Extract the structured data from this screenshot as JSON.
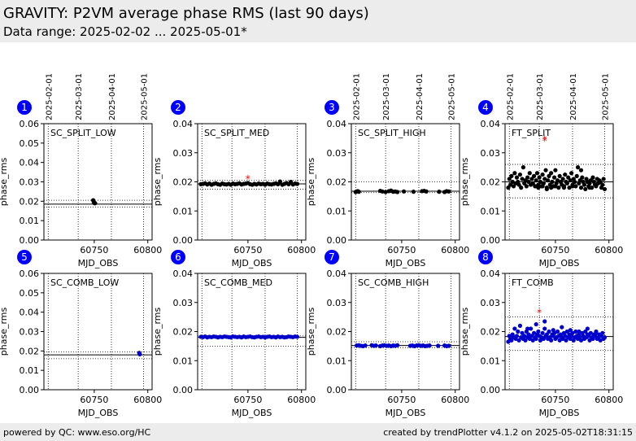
{
  "header": {
    "title": "GRAVITY: P2VM average phase RMS (last 90 days)",
    "subtitle": "Data range: 2025-02-02 ... 2025-05-01*"
  },
  "footer": {
    "left": "powered by QC: www.eso.org/HC",
    "right": "created by trendPlotter v4.1.2 on 2025-05-02T18:31:15"
  },
  "colors": {
    "header_bg": "#ececec",
    "badge": "#0000ff",
    "series_black": "#000000",
    "series_blue": "#0000cc",
    "outlier": "#ff0000"
  },
  "chart_data": [
    {
      "id": 1,
      "type": "scatter",
      "label": "SC_SPLIT_LOW",
      "color": "#000000",
      "ylim": [
        0,
        0.06
      ],
      "yticks": [
        "0.00",
        "0.01",
        "0.02",
        "0.03",
        "0.04",
        "0.05",
        "0.06"
      ],
      "xlim": [
        60703,
        60804
      ],
      "xticks": [
        "60750",
        "60800"
      ],
      "xlabel": "MJD_OBS",
      "ylabel": "phase_rms",
      "date_ticks": [
        "2025-02-01",
        "2025-03-01",
        "2025-04-01",
        "2025-05-01"
      ],
      "hlines": {
        "solid": 0.0185,
        "dotted": [
          0.017,
          0.0205
        ]
      },
      "x": [
        60749.0,
        60749.6,
        60750.2,
        60750.8
      ],
      "y": [
        0.0205,
        0.0195,
        0.019,
        0.019
      ],
      "outliers": []
    },
    {
      "id": 2,
      "type": "scatter",
      "label": "SC_SPLIT_MED",
      "color": "#000000",
      "ylim": [
        0,
        0.04
      ],
      "yticks": [
        "0.00",
        "0.01",
        "0.02",
        "0.03",
        "0.04"
      ],
      "xlim": [
        60703,
        60804
      ],
      "xticks": [
        "60750",
        "60800"
      ],
      "xlabel": "MJD_OBS",
      "ylabel": "phase_rms",
      "hlines": {
        "solid": 0.0193,
        "dotted": [
          0.0175,
          0.0205
        ]
      },
      "x": [
        60706,
        60708,
        60710,
        60712,
        60714,
        60716,
        60718,
        60720,
        60722,
        60724,
        60726,
        60728,
        60730,
        60732,
        60734,
        60736,
        60738,
        60740,
        60742,
        60744,
        60746,
        60748,
        60750,
        60752,
        60754,
        60756,
        60758,
        60760,
        60762,
        60764,
        60766,
        60768,
        60770,
        60772,
        60774,
        60776,
        60778,
        60780,
        60782,
        60784,
        60786,
        60788,
        60790,
        60792,
        60794,
        60796
      ],
      "y": [
        0.0192,
        0.0193,
        0.0195,
        0.0191,
        0.0194,
        0.019,
        0.0193,
        0.0195,
        0.0192,
        0.019,
        0.0194,
        0.0192,
        0.0191,
        0.0193,
        0.019,
        0.0194,
        0.0192,
        0.0193,
        0.0195,
        0.0191,
        0.0193,
        0.0194,
        0.0196,
        0.0192,
        0.019,
        0.0193,
        0.0191,
        0.0194,
        0.0192,
        0.0193,
        0.019,
        0.0194,
        0.0192,
        0.0191,
        0.0193,
        0.0195,
        0.0192,
        0.0201,
        0.019,
        0.0193,
        0.0196,
        0.0192,
        0.02,
        0.0191,
        0.0194,
        0.0193
      ],
      "outliers": [
        [
          60750,
          0.021
        ]
      ]
    },
    {
      "id": 3,
      "type": "scatter",
      "label": "SC_SPLIT_HIGH",
      "color": "#000000",
      "ylim": [
        0,
        0.04
      ],
      "yticks": [
        "0.00",
        "0.01",
        "0.02",
        "0.03",
        "0.04"
      ],
      "xlim": [
        60703,
        60804
      ],
      "xticks": [
        "60750",
        "60800"
      ],
      "xlabel": "MJD_OBS",
      "ylabel": "phase_rms",
      "date_ticks": [
        "2025-02-01",
        "2025-03-01",
        "2025-04-01",
        "2025-05-01"
      ],
      "hlines": {
        "solid": 0.0168,
        "dotted": [
          0.0163,
          0.02
        ]
      },
      "x": [
        60707,
        60708,
        60709,
        60710,
        60730,
        60732,
        60735,
        60738,
        60740,
        60742,
        60744,
        60746,
        60752,
        60761,
        60769,
        60771,
        60773,
        60785,
        60790,
        60792,
        60794
      ],
      "y": [
        0.0165,
        0.0167,
        0.0168,
        0.0166,
        0.0169,
        0.0167,
        0.0165,
        0.0168,
        0.017,
        0.0166,
        0.0167,
        0.0165,
        0.0167,
        0.0166,
        0.0168,
        0.0169,
        0.0167,
        0.0166,
        0.0165,
        0.0168,
        0.0167
      ],
      "outliers": []
    },
    {
      "id": 4,
      "type": "scatter",
      "label": "FT_SPLIT",
      "color": "#000000",
      "ylim": [
        0,
        0.04
      ],
      "yticks": [
        "0.00",
        "0.01",
        "0.02",
        "0.03",
        "0.04"
      ],
      "xlim": [
        60703,
        60804
      ],
      "xticks": [
        "60750",
        "60800"
      ],
      "xlabel": "MJD_OBS",
      "ylabel": "phase_rms",
      "date_ticks": [
        "2025-02-01",
        "2025-03-01",
        "2025-04-01",
        "2025-05-01"
      ],
      "hlines": {
        "solid": 0.02,
        "dotted": [
          0.0145,
          0.026
        ]
      },
      "x": [
        60706,
        60707,
        60708,
        60709,
        60710,
        60711,
        60712,
        60713,
        60714,
        60715,
        60716,
        60717,
        60718,
        60719,
        60720,
        60721,
        60722,
        60723,
        60724,
        60725,
        60726,
        60727,
        60728,
        60729,
        60730,
        60731,
        60732,
        60733,
        60734,
        60735,
        60736,
        60737,
        60738,
        60739,
        60740,
        60741,
        60742,
        60743,
        60744,
        60745,
        60746,
        60747,
        60748,
        60749,
        60750,
        60751,
        60752,
        60753,
        60754,
        60755,
        60756,
        60757,
        60758,
        60759,
        60760,
        60761,
        60762,
        60763,
        60764,
        60765,
        60766,
        60767,
        60768,
        60769,
        60770,
        60771,
        60772,
        60773,
        60774,
        60775,
        60776,
        60777,
        60778,
        60779,
        60780,
        60781,
        60782,
        60783,
        60784,
        60785,
        60786,
        60787,
        60788,
        60789,
        60790,
        60791,
        60792,
        60793,
        60794,
        60795,
        60796,
        60734,
        60738,
        60742,
        60746,
        60750,
        60758,
        60766,
        60774,
        60782
      ],
      "y": [
        0.018,
        0.021,
        0.019,
        0.022,
        0.02,
        0.0185,
        0.023,
        0.0195,
        0.0215,
        0.02,
        0.019,
        0.0225,
        0.018,
        0.021,
        0.025,
        0.0195,
        0.0205,
        0.0185,
        0.0215,
        0.02,
        0.023,
        0.019,
        0.021,
        0.0195,
        0.022,
        0.0185,
        0.0205,
        0.023,
        0.019,
        0.0215,
        0.02,
        0.0185,
        0.0225,
        0.0195,
        0.021,
        0.024,
        0.018,
        0.0205,
        0.022,
        0.019,
        0.023,
        0.02,
        0.0185,
        0.0215,
        0.024,
        0.0195,
        0.0205,
        0.018,
        0.022,
        0.02,
        0.019,
        0.021,
        0.0185,
        0.0225,
        0.02,
        0.0195,
        0.0215,
        0.018,
        0.0205,
        0.023,
        0.019,
        0.021,
        0.02,
        0.0185,
        0.022,
        0.025,
        0.0195,
        0.0205,
        0.018,
        0.0215,
        0.02,
        0.019,
        0.0175,
        0.021,
        0.02,
        0.0185,
        0.0195,
        0.0205,
        0.018,
        0.0215,
        0.02,
        0.019,
        0.0185,
        0.021,
        0.0195,
        0.0205,
        0.02,
        0.018,
        0.019,
        0.021,
        0.0175,
        0.018,
        0.0185,
        0.0175,
        0.018,
        0.0185,
        0.018,
        0.0185,
        0.024,
        0.018
      ],
      "outliers": [
        [
          60740,
          0.0345
        ],
        [
          60740,
          0.034
        ]
      ]
    },
    {
      "id": 5,
      "type": "scatter",
      "label": "SC_COMB_LOW",
      "color": "#0000cc",
      "ylim": [
        0,
        0.06
      ],
      "yticks": [
        "0.00",
        "0.01",
        "0.02",
        "0.03",
        "0.04",
        "0.05",
        "0.06"
      ],
      "xlim": [
        60703,
        60804
      ],
      "xticks": [
        "60750",
        "60800"
      ],
      "xlabel": "MJD_OBS",
      "ylabel": "phase_rms",
      "hlines": {
        "solid": 0.018,
        "dotted": [
          0.016,
          0.0195
        ]
      },
      "x": [
        60792,
        60792.5
      ],
      "y": [
        0.019,
        0.0183
      ],
      "outliers": []
    },
    {
      "id": 6,
      "type": "scatter",
      "label": "SC_COMB_MED",
      "color": "#0000cc",
      "ylim": [
        0,
        0.04
      ],
      "yticks": [
        "0.00",
        "0.01",
        "0.02",
        "0.03",
        "0.04"
      ],
      "xlim": [
        60703,
        60804
      ],
      "xticks": [
        "60750",
        "60800"
      ],
      "xlabel": "MJD_OBS",
      "ylabel": "phase_rms",
      "hlines": {
        "solid": 0.018,
        "dotted": [
          0.015,
          0.0185
        ]
      },
      "x": [
        60706,
        60708,
        60710,
        60712,
        60714,
        60716,
        60718,
        60720,
        60722,
        60724,
        60726,
        60728,
        60730,
        60732,
        60734,
        60736,
        60738,
        60740,
        60742,
        60744,
        60746,
        60748,
        60750,
        60752,
        60754,
        60756,
        60758,
        60760,
        60762,
        60764,
        60766,
        60768,
        60770,
        60772,
        60774,
        60776,
        60778,
        60780,
        60782,
        60784,
        60786,
        60788,
        60790,
        60792,
        60794,
        60796
      ],
      "y": [
        0.0182,
        0.0181,
        0.0183,
        0.018,
        0.0182,
        0.0181,
        0.0183,
        0.0182,
        0.018,
        0.0182,
        0.0181,
        0.0183,
        0.0182,
        0.0181,
        0.018,
        0.0183,
        0.0182,
        0.0181,
        0.0182,
        0.018,
        0.0183,
        0.0181,
        0.0182,
        0.0183,
        0.0181,
        0.018,
        0.0182,
        0.0183,
        0.0181,
        0.0182,
        0.018,
        0.0182,
        0.0183,
        0.0181,
        0.0182,
        0.018,
        0.0183,
        0.0181,
        0.0182,
        0.018,
        0.0181,
        0.0183,
        0.0182,
        0.0181,
        0.0183,
        0.0182
      ],
      "outliers": []
    },
    {
      "id": 7,
      "type": "scatter",
      "label": "SC_COMB_HIGH",
      "color": "#0000cc",
      "ylim": [
        0,
        0.04
      ],
      "yticks": [
        "0.00",
        "0.01",
        "0.02",
        "0.03",
        "0.04"
      ],
      "xlim": [
        60703,
        60804
      ],
      "xticks": [
        "60750",
        "60800"
      ],
      "xlabel": "MJD_OBS",
      "ylabel": "phase_rms",
      "hlines": {
        "solid": 0.0152,
        "dotted": [
          0.0145,
          0.0165
        ]
      },
      "x": [
        60708,
        60710,
        60712,
        60714,
        60716,
        60722,
        60724,
        60726,
        60730,
        60732,
        60734,
        60736,
        60738,
        60740,
        60742,
        60744,
        60746,
        60758,
        60760,
        60762,
        60764,
        60766,
        60768,
        60770,
        60772,
        60774,
        60776,
        60784,
        60790,
        60792,
        60794
      ],
      "y": [
        0.0152,
        0.0153,
        0.0151,
        0.015,
        0.0152,
        0.0153,
        0.0151,
        0.0152,
        0.015,
        0.0152,
        0.0153,
        0.0151,
        0.0152,
        0.015,
        0.0152,
        0.0151,
        0.0153,
        0.0151,
        0.0152,
        0.015,
        0.0152,
        0.0153,
        0.0151,
        0.0152,
        0.015,
        0.0151,
        0.0152,
        0.0151,
        0.0152,
        0.015,
        0.0151
      ],
      "outliers": []
    },
    {
      "id": 8,
      "type": "scatter",
      "label": "FT_COMB",
      "color": "#0000cc",
      "ylim": [
        0,
        0.04
      ],
      "yticks": [
        "0.00",
        "0.01",
        "0.02",
        "0.03",
        "0.04"
      ],
      "xlim": [
        60703,
        60804
      ],
      "xticks": [
        "60750",
        "60800"
      ],
      "xlabel": "MJD_OBS",
      "ylabel": "phase_rms",
      "hlines": {
        "solid": 0.0183,
        "dotted": [
          0.0135,
          0.025
        ]
      },
      "x": [
        60706,
        60707,
        60708,
        60709,
        60710,
        60711,
        60712,
        60713,
        60714,
        60715,
        60716,
        60717,
        60718,
        60719,
        60720,
        60721,
        60722,
        60723,
        60724,
        60725,
        60726,
        60727,
        60728,
        60729,
        60730,
        60731,
        60732,
        60733,
        60734,
        60735,
        60736,
        60737,
        60738,
        60739,
        60740,
        60741,
        60742,
        60743,
        60744,
        60745,
        60746,
        60747,
        60748,
        60749,
        60750,
        60751,
        60752,
        60753,
        60754,
        60755,
        60756,
        60757,
        60758,
        60759,
        60760,
        60761,
        60762,
        60763,
        60764,
        60765,
        60766,
        60767,
        60768,
        60769,
        60770,
        60771,
        60772,
        60773,
        60774,
        60775,
        60776,
        60777,
        60778,
        60779,
        60780,
        60781,
        60782,
        60783,
        60784,
        60785,
        60786,
        60787,
        60788,
        60789,
        60790,
        60791,
        60792,
        60793,
        60794,
        60795,
        60796,
        60724,
        60732,
        60740,
        60748,
        60756,
        60764,
        60772,
        60780,
        60788
      ],
      "y": [
        0.0165,
        0.0185,
        0.0175,
        0.017,
        0.019,
        0.018,
        0.021,
        0.0175,
        0.0185,
        0.02,
        0.017,
        0.022,
        0.018,
        0.0195,
        0.0175,
        0.0185,
        0.017,
        0.02,
        0.018,
        0.019,
        0.0175,
        0.021,
        0.0185,
        0.017,
        0.0195,
        0.018,
        0.0175,
        0.019,
        0.02,
        0.0185,
        0.017,
        0.018,
        0.0195,
        0.0175,
        0.021,
        0.0185,
        0.019,
        0.0175,
        0.02,
        0.018,
        0.017,
        0.019,
        0.0185,
        0.0195,
        0.0175,
        0.018,
        0.02,
        0.0185,
        0.017,
        0.019,
        0.018,
        0.0175,
        0.0195,
        0.0185,
        0.017,
        0.02,
        0.018,
        0.019,
        0.0175,
        0.0185,
        0.0195,
        0.017,
        0.018,
        0.02,
        0.0185,
        0.0175,
        0.019,
        0.018,
        0.017,
        0.0195,
        0.0185,
        0.0175,
        0.02,
        0.018,
        0.019,
        0.0185,
        0.017,
        0.0195,
        0.018,
        0.0175,
        0.019,
        0.0185,
        0.02,
        0.0175,
        0.018,
        0.019,
        0.017,
        0.0185,
        0.0195,
        0.0175,
        0.018,
        0.021,
        0.0225,
        0.0235,
        0.0205,
        0.0215,
        0.0205,
        0.02,
        0.021,
        0.0195
      ],
      "outliers": [
        [
          60735,
          0.0265
        ]
      ]
    }
  ]
}
